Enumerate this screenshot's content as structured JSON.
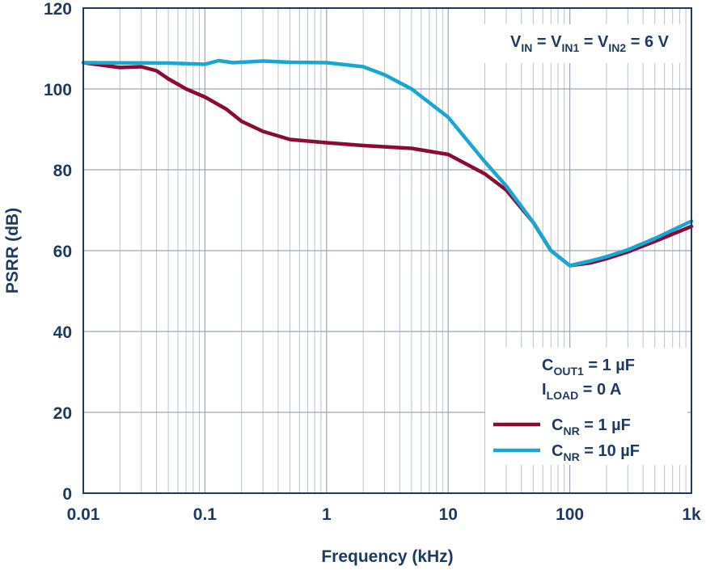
{
  "chart_data": {
    "type": "line",
    "xlabel": "Frequency (kHz)",
    "ylabel": "PSRR (dB)",
    "xscale": "log",
    "xlim": [
      0.01,
      1000
    ],
    "ylim": [
      0,
      120
    ],
    "xticks": [
      0.01,
      0.1,
      1,
      10,
      100,
      {
        "value": 1000,
        "label": "1k"
      }
    ],
    "xminorticks": [
      0.02,
      0.03,
      0.04,
      0.05,
      0.06,
      0.07,
      0.08,
      0.09,
      0.2,
      0.3,
      0.4,
      0.5,
      0.6,
      0.7,
      0.8,
      0.9,
      2,
      3,
      4,
      5,
      6,
      7,
      8,
      9,
      20,
      30,
      40,
      50,
      60,
      70,
      80,
      90,
      200,
      300,
      400,
      500,
      600,
      700,
      800,
      900
    ],
    "yticks": [
      0,
      20,
      40,
      60,
      80,
      100,
      120
    ],
    "grid": true,
    "annotation": [
      {
        "t": "V",
        "sub": "IN"
      },
      {
        "t": " = V",
        "sub": "IN1"
      },
      {
        "t": " = V",
        "sub": "IN2"
      },
      {
        "t": " = 6 V"
      }
    ],
    "conditions": [
      [
        {
          "t": "C",
          "sub": "OUT1"
        },
        {
          "t": " = 1 µF"
        }
      ],
      [
        {
          "t": "I",
          "sub": "LOAD"
        },
        {
          "t": " = 0 A"
        }
      ]
    ],
    "legend": "lower right",
    "series": [
      {
        "name": [
          {
            "t": "C",
            "sub": "NR"
          },
          {
            "t": " = 1 µF"
          }
        ],
        "color": "#8b0b32",
        "x": [
          0.01,
          0.02,
          0.03,
          0.04,
          0.05,
          0.07,
          0.1,
          0.15,
          0.2,
          0.3,
          0.5,
          1,
          2,
          5,
          10,
          20,
          30,
          50,
          70,
          100,
          150,
          200,
          300,
          500,
          1000
        ],
        "values": [
          106.5,
          105.3,
          105.5,
          104.5,
          102.5,
          100,
          98,
          95,
          92,
          89.5,
          87.5,
          86.7,
          86,
          85.3,
          83.8,
          79,
          75,
          67,
          60,
          56.3,
          57,
          58,
          59.7,
          62.3,
          66
        ]
      },
      {
        "name": [
          {
            "t": "C",
            "sub": "NR"
          },
          {
            "t": " = 10 µF"
          }
        ],
        "color": "#1aa6d4",
        "x": [
          0.01,
          0.05,
          0.1,
          0.13,
          0.17,
          0.3,
          0.5,
          1,
          2,
          3,
          5,
          10,
          20,
          30,
          50,
          70,
          100,
          150,
          200,
          300,
          500,
          1000
        ],
        "values": [
          106.5,
          106.4,
          106.1,
          107,
          106.5,
          106.9,
          106.6,
          106.5,
          105.5,
          103.5,
          100,
          93,
          82,
          76,
          67,
          60,
          56.3,
          57.5,
          58.5,
          60.2,
          63,
          67.3
        ]
      }
    ]
  }
}
